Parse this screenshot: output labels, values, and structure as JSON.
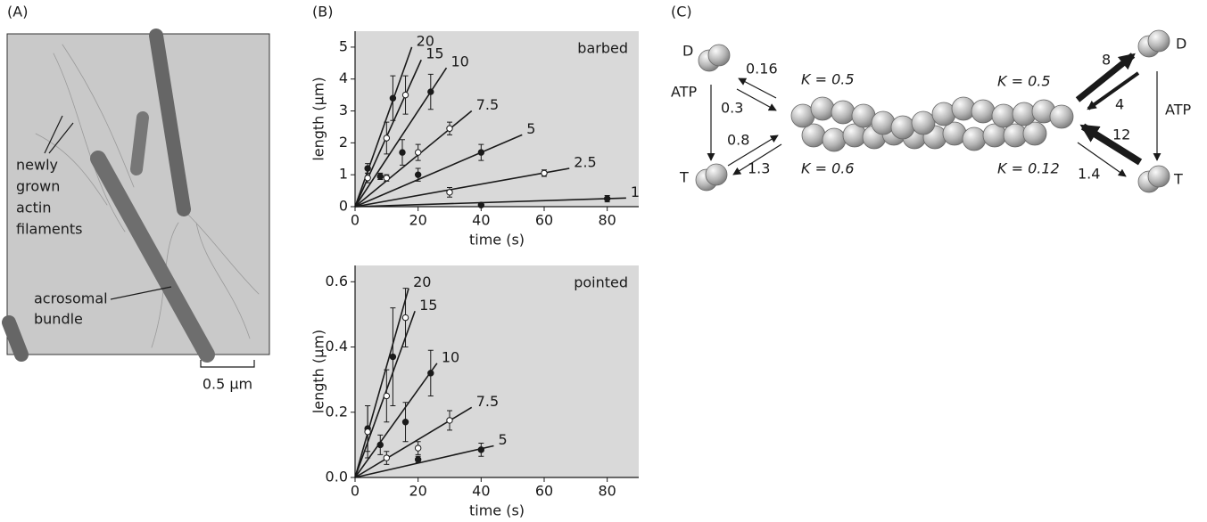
{
  "panel_a": {
    "label": "(A)",
    "annotations": [
      "newly",
      "grown",
      "actin",
      "filaments",
      "acrosomal",
      "bundle"
    ],
    "scale_bar": "0.5 μm"
  },
  "chart_data": [
    {
      "type": "scatter",
      "panel_label": "(B)",
      "annotation": "barbed",
      "x_label": "time (s)",
      "y_label": "length (μm)",
      "xlim": [
        0,
        90
      ],
      "ylim": [
        0,
        5.5
      ],
      "xticks": [
        0,
        20,
        40,
        60,
        80
      ],
      "yticks": [
        0,
        1,
        2,
        3,
        4,
        5
      ],
      "background": "#d9d9d9",
      "series": [
        {
          "name": "20",
          "marker": "filled",
          "color": "#1a1a1a",
          "x": [
            4,
            12
          ],
          "values": [
            1.2,
            3.4
          ],
          "errors": [
            0.15,
            0.7
          ],
          "fit_x": [
            0,
            18
          ],
          "fit_y": [
            0,
            5.0
          ]
        },
        {
          "name": "15",
          "marker": "open",
          "color": "#1a1a1a",
          "x": [
            4,
            10,
            16
          ],
          "values": [
            0.9,
            2.15,
            3.5
          ],
          "errors": [
            0.15,
            0.5,
            0.6
          ],
          "fit_x": [
            0,
            21
          ],
          "fit_y": [
            0,
            4.6
          ]
        },
        {
          "name": "10",
          "marker": "filled",
          "color": "#1a1a1a",
          "x": [
            8,
            15,
            24
          ],
          "values": [
            0.95,
            1.7,
            3.6
          ],
          "errors": [
            0.1,
            0.4,
            0.55
          ],
          "fit_x": [
            0,
            29
          ],
          "fit_y": [
            0,
            4.35
          ]
        },
        {
          "name": "7.5",
          "marker": "open",
          "color": "#1a1a1a",
          "x": [
            10,
            20,
            30
          ],
          "values": [
            0.9,
            1.7,
            2.45
          ],
          "errors": [
            0.1,
            0.25,
            0.2
          ],
          "fit_x": [
            0,
            37
          ],
          "fit_y": [
            0,
            3.0
          ]
        },
        {
          "name": "5",
          "marker": "filled",
          "color": "#1a1a1a",
          "x": [
            20,
            40
          ],
          "values": [
            1.0,
            1.7
          ],
          "errors": [
            0.2,
            0.25
          ],
          "fit_x": [
            0,
            53
          ],
          "fit_y": [
            0,
            2.25
          ]
        },
        {
          "name": "2.5",
          "marker": "open",
          "color": "#1a1a1a",
          "x": [
            30,
            60
          ],
          "values": [
            0.45,
            1.05
          ],
          "errors": [
            0.15,
            0.1
          ],
          "fit_x": [
            0,
            68
          ],
          "fit_y": [
            0,
            1.2
          ]
        },
        {
          "name": "1",
          "marker": "filled",
          "color": "#1a1a1a",
          "x": [
            40,
            80
          ],
          "values": [
            0.05,
            0.25
          ],
          "errors": [
            0.05,
            0.1
          ],
          "fit_x": [
            0,
            86
          ],
          "fit_y": [
            0,
            0.27
          ]
        }
      ]
    },
    {
      "type": "scatter",
      "annotation": "pointed",
      "x_label": "time (s)",
      "y_label": "length (μm)",
      "xlim": [
        0,
        90
      ],
      "ylim": [
        0,
        0.65
      ],
      "xticks": [
        0,
        20,
        40,
        60,
        80
      ],
      "yticks": [
        {
          "value": 0,
          "label": "0.0"
        },
        0.2,
        0.4,
        0.6
      ],
      "background": "#d9d9d9",
      "series": [
        {
          "name": "20",
          "marker": "filled",
          "color": "#1a1a1a",
          "x": [
            4,
            12
          ],
          "values": [
            0.15,
            0.37
          ],
          "errors": [
            0.07,
            0.15
          ],
          "fit_x": [
            0,
            17
          ],
          "fit_y": [
            0,
            0.58
          ]
        },
        {
          "name": "15",
          "marker": "open",
          "color": "#1a1a1a",
          "x": [
            4,
            10,
            16
          ],
          "values": [
            0.14,
            0.25,
            0.49
          ],
          "errors": [
            0.08,
            0.08,
            0.09
          ],
          "fit_x": [
            0,
            19
          ],
          "fit_y": [
            0,
            0.51
          ]
        },
        {
          "name": "10",
          "marker": "filled",
          "color": "#1a1a1a",
          "x": [
            8,
            16,
            24
          ],
          "values": [
            0.1,
            0.17,
            0.32
          ],
          "errors": [
            0.03,
            0.06,
            0.07
          ],
          "fit_x": [
            0,
            26
          ],
          "fit_y": [
            0,
            0.35
          ]
        },
        {
          "name": "7.5",
          "marker": "open",
          "color": "#1a1a1a",
          "x": [
            10,
            20,
            30
          ],
          "values": [
            0.06,
            0.09,
            0.175
          ],
          "errors": [
            0.02,
            0.02,
            0.03
          ],
          "fit_x": [
            0,
            37
          ],
          "fit_y": [
            0,
            0.215
          ]
        },
        {
          "name": "5",
          "marker": "filled",
          "color": "#1a1a1a",
          "x": [
            20,
            40
          ],
          "values": [
            0.055,
            0.085
          ],
          "errors": [
            0.01,
            0.02
          ],
          "fit_x": [
            0,
            44
          ],
          "fit_y": [
            0,
            0.097
          ]
        }
      ]
    }
  ],
  "panel_c": {
    "label": "(C)",
    "left": {
      "d": "D",
      "t": "T",
      "atp": "ATP",
      "d_off": "0.16",
      "d_on": "0.3",
      "t_on": "0.8",
      "t_off": "1.3",
      "k_d": "K = 0.5",
      "k_t": "K = 0.6"
    },
    "right": {
      "d": "D",
      "t": "T",
      "atp": "ATP",
      "d_off": "8",
      "d_on": "4",
      "t_on": "12",
      "t_off": "1.4",
      "k_d": "K = 0.5",
      "k_t": "K = 0.12"
    }
  }
}
